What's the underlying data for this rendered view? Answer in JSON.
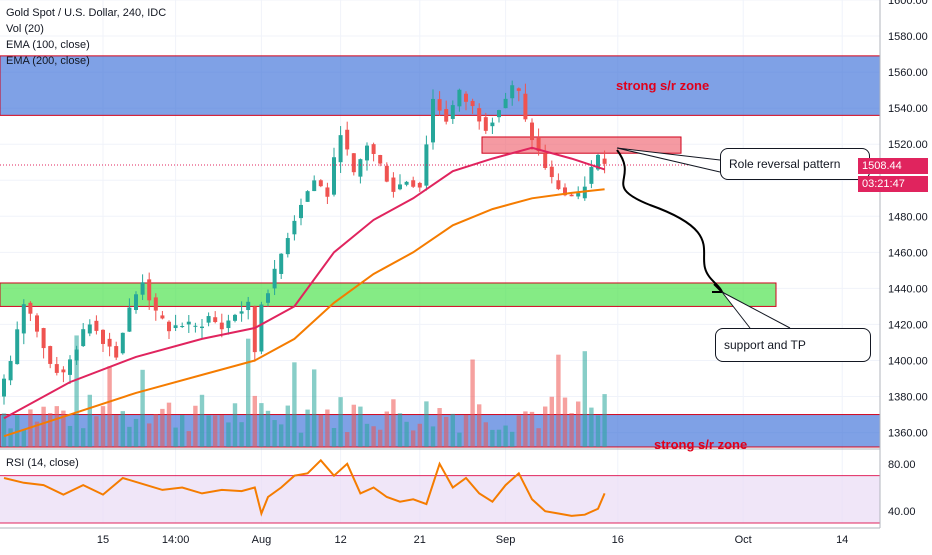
{
  "chart_data": {
    "type": "candlestick",
    "title": "Gold Spot / U.S. Dollar, 240, IDC",
    "indicators": [
      "Vol (20)",
      "EMA (100, close)",
      "EMA (200, close)"
    ],
    "rsi_label": "RSI (14, close)",
    "price_axis": {
      "ylim": [
        1352,
        1600
      ],
      "ticks": [
        "1600.00",
        "1580.00",
        "1560.00",
        "1540.00",
        "1520.00",
        "1500.00",
        "1480.00",
        "1460.00",
        "1440.00",
        "1420.00",
        "1400.00",
        "1380.00",
        "1360.00"
      ],
      "tick_values": [
        1600,
        1580,
        1560,
        1540,
        1520,
        1500,
        1480,
        1460,
        1440,
        1420,
        1400,
        1380,
        1360
      ]
    },
    "rsi_axis": {
      "ylim": [
        30,
        90
      ],
      "ticks": [
        "80.00",
        "40.00"
      ],
      "tick_values": [
        80,
        40
      ],
      "bands": [
        70,
        30
      ]
    },
    "x_axis": {
      "labels": [
        "15",
        "14:00",
        "Aug",
        "12",
        "21",
        "Sep",
        "16",
        "Oct",
        "14"
      ],
      "label_index": [
        15,
        26,
        39,
        51,
        63,
        76,
        93,
        112,
        127
      ]
    },
    "current_price": "1508.44",
    "countdown": "03:21:47",
    "close_path": [
      [
        0,
        1380
      ],
      [
        2,
        1398
      ],
      [
        4,
        1432
      ],
      [
        6,
        1418
      ],
      [
        8,
        1398
      ],
      [
        10,
        1392
      ],
      [
        12,
        1408
      ],
      [
        14,
        1422
      ],
      [
        16,
        1412
      ],
      [
        18,
        1404
      ],
      [
        20,
        1428
      ],
      [
        22,
        1445
      ],
      [
        24,
        1425
      ],
      [
        26,
        1418
      ],
      [
        28,
        1420
      ],
      [
        30,
        1418
      ],
      [
        32,
        1424
      ],
      [
        34,
        1418
      ],
      [
        36,
        1426
      ],
      [
        38,
        1430
      ],
      [
        39,
        1405
      ],
      [
        40,
        1432
      ],
      [
        42,
        1448
      ],
      [
        44,
        1470
      ],
      [
        46,
        1488
      ],
      [
        48,
        1500
      ],
      [
        50,
        1492
      ],
      [
        52,
        1528
      ],
      [
        54,
        1502
      ],
      [
        56,
        1520
      ],
      [
        58,
        1508
      ],
      [
        60,
        1495
      ],
      [
        62,
        1500
      ],
      [
        64,
        1497
      ],
      [
        66,
        1545
      ],
      [
        68,
        1534
      ],
      [
        70,
        1548
      ],
      [
        72,
        1540
      ],
      [
        74,
        1530
      ],
      [
        76,
        1540
      ],
      [
        78,
        1551
      ],
      [
        79,
        1548
      ],
      [
        80,
        1532
      ],
      [
        82,
        1515
      ],
      [
        84,
        1500
      ],
      [
        86,
        1492
      ],
      [
        88,
        1490
      ],
      [
        90,
        1506
      ],
      [
        91,
        1512
      ]
    ],
    "ema100": [
      [
        0,
        1368
      ],
      [
        10,
        1388
      ],
      [
        20,
        1402
      ],
      [
        30,
        1412
      ],
      [
        38,
        1418
      ],
      [
        44,
        1430
      ],
      [
        50,
        1460
      ],
      [
        56,
        1478
      ],
      [
        62,
        1490
      ],
      [
        68,
        1505
      ],
      [
        74,
        1512
      ],
      [
        80,
        1518
      ],
      [
        86,
        1512
      ],
      [
        91,
        1506
      ]
    ],
    "ema200": [
      [
        0,
        1358
      ],
      [
        10,
        1370
      ],
      [
        20,
        1382
      ],
      [
        30,
        1392
      ],
      [
        38,
        1400
      ],
      [
        44,
        1412
      ],
      [
        50,
        1432
      ],
      [
        56,
        1448
      ],
      [
        62,
        1460
      ],
      [
        68,
        1475
      ],
      [
        74,
        1484
      ],
      [
        80,
        1490
      ],
      [
        86,
        1493
      ],
      [
        91,
        1495
      ]
    ],
    "rsi": [
      [
        0,
        68
      ],
      [
        3,
        64
      ],
      [
        6,
        62
      ],
      [
        9,
        54
      ],
      [
        12,
        62
      ],
      [
        15,
        54
      ],
      [
        18,
        68
      ],
      [
        21,
        63
      ],
      [
        24,
        58
      ],
      [
        27,
        60
      ],
      [
        30,
        55
      ],
      [
        33,
        58
      ],
      [
        36,
        57
      ],
      [
        38,
        60
      ],
      [
        39,
        38
      ],
      [
        40,
        52
      ],
      [
        42,
        60
      ],
      [
        44,
        70
      ],
      [
        46,
        72
      ],
      [
        48,
        83
      ],
      [
        50,
        70
      ],
      [
        52,
        80
      ],
      [
        54,
        55
      ],
      [
        56,
        60
      ],
      [
        58,
        52
      ],
      [
        60,
        48
      ],
      [
        62,
        50
      ],
      [
        64,
        46
      ],
      [
        66,
        80
      ],
      [
        68,
        60
      ],
      [
        70,
        68
      ],
      [
        72,
        55
      ],
      [
        74,
        48
      ],
      [
        76,
        62
      ],
      [
        78,
        72
      ],
      [
        80,
        50
      ],
      [
        82,
        40
      ],
      [
        84,
        38
      ],
      [
        86,
        36
      ],
      [
        88,
        37
      ],
      [
        90,
        42
      ],
      [
        91,
        55
      ]
    ],
    "zones": [
      {
        "name": "strong s/r zone upper",
        "low": 1536,
        "high": 1569,
        "color": "#3a6fd8"
      },
      {
        "name": "role reversal zone",
        "low": 1515,
        "high": 1524,
        "color": "#f06470"
      },
      {
        "name": "support and TP zone",
        "low": 1430,
        "high": 1443,
        "color": "#44e044"
      },
      {
        "name": "strong s/r zone lower",
        "low": 1352,
        "high": 1370,
        "color": "#3a6fd8"
      }
    ],
    "colors": {
      "up": "#26a69a",
      "down": "#ef5350",
      "ema100": "#e0245e",
      "ema200": "#f57c00",
      "rsi_line": "#f57c00",
      "rsi_band": "#e9dcf5",
      "badge": "#e0245e"
    }
  },
  "annotations": {
    "zone_upper_label": "strong s/r zone",
    "zone_lower_label": "strong s/r zone",
    "role_reversal": "Role reversal pattern",
    "support_tp": "support and TP"
  }
}
